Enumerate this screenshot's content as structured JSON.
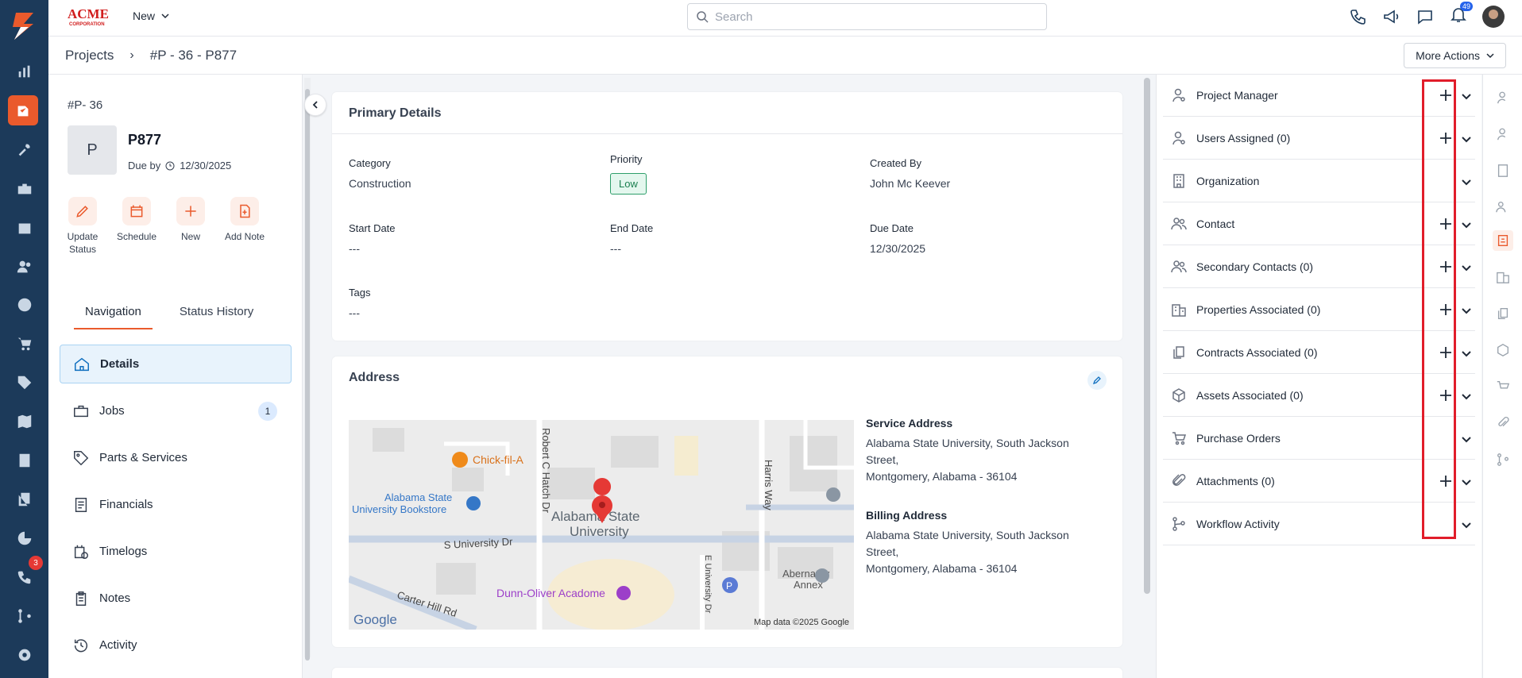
{
  "topbar": {
    "brand": "ACME CORPORATION",
    "new_label": "New",
    "search_placeholder": "Search",
    "notifications_count": "49"
  },
  "leftbar": {
    "badge_count": "3"
  },
  "breadcrumb": {
    "root": "Projects",
    "current": "#P - 36 - P877"
  },
  "more_actions": "More Actions",
  "project": {
    "id": "#P- 36",
    "avatar_letter": "P",
    "name": "P877",
    "due_label": "Due by",
    "due_date": "12/30/2025"
  },
  "quick_actions": [
    {
      "label": "Update Status",
      "icon": "edit-icon"
    },
    {
      "label": "Schedule",
      "icon": "calendar-icon"
    },
    {
      "label": "New",
      "icon": "plus-icon"
    },
    {
      "label": "Add Note",
      "icon": "note-add-icon"
    }
  ],
  "tabs": [
    "Navigation",
    "Status History"
  ],
  "nav": [
    {
      "label": "Details",
      "icon": "home-icon",
      "active": true
    },
    {
      "label": "Jobs",
      "icon": "briefcase-icon",
      "count": "1"
    },
    {
      "label": "Parts & Services",
      "icon": "tag-icon"
    },
    {
      "label": "Financials",
      "icon": "document-icon"
    },
    {
      "label": "Timelogs",
      "icon": "calendar-clock-icon"
    },
    {
      "label": "Notes",
      "icon": "clipboard-icon"
    },
    {
      "label": "Activity",
      "icon": "history-icon"
    }
  ],
  "primary": {
    "title": "Primary Details",
    "category_label": "Category",
    "category": "Construction",
    "priority_label": "Priority",
    "priority": "Low",
    "created_label": "Created By",
    "created_by": "John Mc Keever",
    "start_label": "Start Date",
    "start": "---",
    "end_label": "End Date",
    "end": "---",
    "due_label": "Due Date",
    "due": "12/30/2025",
    "tags_label": "Tags",
    "tags": "---"
  },
  "address": {
    "title": "Address",
    "service_label": "Service Address",
    "service_line1": "Alabama State University, South Jackson",
    "service_line2": "Street,",
    "service_line3": "Montgomery, Alabama - 36104",
    "billing_label": "Billing Address",
    "billing_line1": "Alabama State University, South Jackson",
    "billing_line2": "Street,",
    "billing_line3": "Montgomery, Alabama - 36104"
  },
  "map": {
    "chick": "Chick-fil-A",
    "bookstore1": "Alabama State",
    "bookstore2": "University Bookstore",
    "asu1": "Alabama State",
    "asu2": "University",
    "robert": "Robert C Hatch Dr",
    "harris": "Harris Way",
    "suniv": "S University Dr",
    "dunn": "Dunn-Oliver Acadome",
    "abern1": "Abernathy",
    "abern2": "Annex",
    "carter": "Carter Hill Rd",
    "euniv": "E University Dr",
    "google": "Google",
    "mapdata": "Map data ©2025 Google"
  },
  "related": [
    {
      "label": "Project Manager",
      "icon": "user-gear-icon",
      "add": true
    },
    {
      "label": "Users Assigned (0)",
      "icon": "user-add-icon",
      "add": true
    },
    {
      "label": "Organization",
      "icon": "building-icon",
      "add": false
    },
    {
      "label": "Contact",
      "icon": "users-icon",
      "add": true
    },
    {
      "label": "Secondary Contacts (0)",
      "icon": "users-icon",
      "add": true
    },
    {
      "label": "Properties Associated (0)",
      "icon": "buildings-icon",
      "add": true
    },
    {
      "label": "Contracts Associated (0)",
      "icon": "copy-icon",
      "add": true
    },
    {
      "label": "Assets Associated (0)",
      "icon": "cube-icon",
      "add": true
    },
    {
      "label": "Purchase Orders",
      "icon": "cart-icon",
      "add": false
    },
    {
      "label": "Attachments (0)",
      "icon": "paperclip-icon",
      "add": true
    },
    {
      "label": "Workflow Activity",
      "icon": "workflow-icon",
      "add": false
    }
  ],
  "colors": {
    "accent": "#ea5a2c",
    "sidebar": "#1c3a5a",
    "highlight": "#e11d2a",
    "priority_low": "#2e9e6a"
  }
}
